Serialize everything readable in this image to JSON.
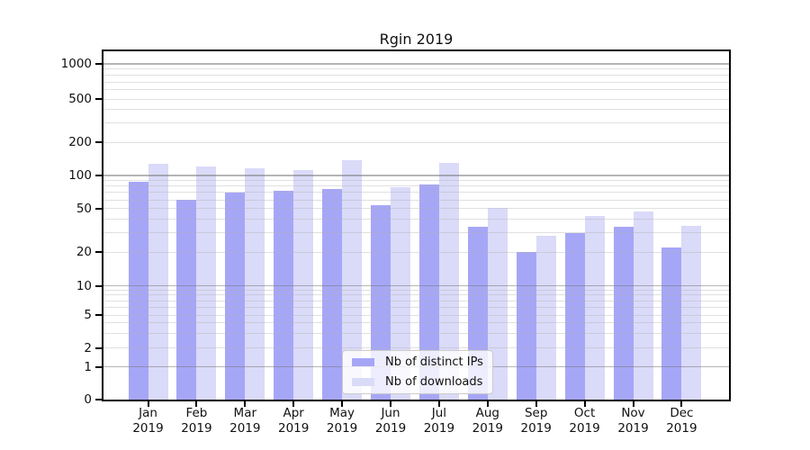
{
  "title": "Rgin 2019",
  "chart_data": {
    "type": "bar",
    "title": "Rgin 2019",
    "x_months": [
      "Jan",
      "Feb",
      "Mar",
      "Apr",
      "May",
      "Jun",
      "Jul",
      "Aug",
      "Sep",
      "Oct",
      "Nov",
      "Dec"
    ],
    "x_year": "2019",
    "categories": [
      "Jan 2019",
      "Feb 2019",
      "Mar 2019",
      "Apr 2019",
      "May 2019",
      "Jun 2019",
      "Jul 2019",
      "Aug 2019",
      "Sep 2019",
      "Oct 2019",
      "Nov 2019",
      "Dec 2019"
    ],
    "series": [
      {
        "name": "Nb of distinct IPs",
        "color": "#a6a6f7",
        "values": [
          87,
          60,
          70,
          73,
          76,
          54,
          83,
          34,
          20,
          30,
          34,
          22
        ]
      },
      {
        "name": "Nb of downloads",
        "color": "#dadaf9",
        "values": [
          128,
          120,
          116,
          111,
          137,
          78,
          131,
          51,
          28,
          43,
          47,
          35
        ]
      }
    ],
    "yscale": "symlog",
    "yticks": [
      0,
      1,
      2,
      5,
      10,
      20,
      50,
      100,
      200,
      500,
      1000
    ],
    "ylim": [
      0,
      1000
    ],
    "grid": true,
    "legend_position": "lower center"
  },
  "colors": {
    "distinct_ips": "#a6a6f7",
    "downloads": "#dadaf9",
    "grid_major": "#bbbbbb",
    "grid_minor": "#e8e8e8",
    "axis": "#000000",
    "legend_border": "#cccccc"
  }
}
